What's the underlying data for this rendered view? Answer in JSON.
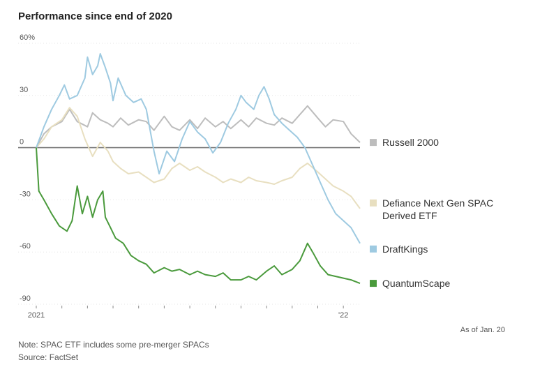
{
  "title": "Performance since end of 2020",
  "as_of": "As of Jan. 20",
  "note": "Note: SPAC ETF includes some pre-merger SPACs",
  "source": "Source: FactSet",
  "chart_data": {
    "type": "line",
    "ylim": [
      -90,
      60
    ],
    "yticks": [
      60,
      30,
      0,
      -30,
      -60,
      -90
    ],
    "ytick_labels": [
      "60%",
      "30",
      "0",
      "-30",
      "-60",
      "-90"
    ],
    "x_range_months": [
      0,
      12.65
    ],
    "xtick_labels": [
      {
        "month": 0,
        "label": "2021"
      },
      {
        "month": 12,
        "label": "'22"
      }
    ],
    "series": [
      {
        "name": "Russell 2000",
        "legend_label": [
          "Russell 2000"
        ],
        "color": "#bdbdbd",
        "points": [
          [
            0,
            0
          ],
          [
            0.3,
            8
          ],
          [
            0.6,
            12
          ],
          [
            1.0,
            15
          ],
          [
            1.3,
            22
          ],
          [
            1.6,
            15
          ],
          [
            2.0,
            12
          ],
          [
            2.2,
            20
          ],
          [
            2.5,
            16
          ],
          [
            2.8,
            14
          ],
          [
            3.0,
            12
          ],
          [
            3.3,
            17
          ],
          [
            3.6,
            13
          ],
          [
            4.0,
            16
          ],
          [
            4.3,
            15
          ],
          [
            4.6,
            10
          ],
          [
            5.0,
            18
          ],
          [
            5.3,
            12
          ],
          [
            5.6,
            10
          ],
          [
            6.0,
            16
          ],
          [
            6.3,
            11
          ],
          [
            6.6,
            17
          ],
          [
            7.0,
            12
          ],
          [
            7.3,
            15
          ],
          [
            7.6,
            11
          ],
          [
            8.0,
            16
          ],
          [
            8.3,
            12
          ],
          [
            8.6,
            17
          ],
          [
            9.0,
            14
          ],
          [
            9.3,
            13
          ],
          [
            9.6,
            17
          ],
          [
            10.0,
            14
          ],
          [
            10.3,
            19
          ],
          [
            10.6,
            24
          ],
          [
            11.0,
            17
          ],
          [
            11.3,
            12
          ],
          [
            11.6,
            16
          ],
          [
            12.0,
            15
          ],
          [
            12.3,
            8
          ],
          [
            12.65,
            3
          ]
        ]
      },
      {
        "name": "Defiance Next Gen SPAC Derived ETF",
        "legend_label": [
          "Defiance Next Gen SPAC",
          "Derived ETF"
        ],
        "color": "#e8dfc0",
        "points": [
          [
            0,
            0
          ],
          [
            0.3,
            5
          ],
          [
            0.6,
            12
          ],
          [
            1.0,
            16
          ],
          [
            1.3,
            23
          ],
          [
            1.6,
            18
          ],
          [
            1.9,
            5
          ],
          [
            2.2,
            -5
          ],
          [
            2.5,
            3
          ],
          [
            2.8,
            -2
          ],
          [
            3.0,
            -8
          ],
          [
            3.3,
            -12
          ],
          [
            3.6,
            -15
          ],
          [
            4.0,
            -14
          ],
          [
            4.3,
            -17
          ],
          [
            4.6,
            -20
          ],
          [
            5.0,
            -18
          ],
          [
            5.3,
            -12
          ],
          [
            5.6,
            -9
          ],
          [
            6.0,
            -13
          ],
          [
            6.3,
            -11
          ],
          [
            6.6,
            -14
          ],
          [
            7.0,
            -17
          ],
          [
            7.3,
            -20
          ],
          [
            7.6,
            -18
          ],
          [
            8.0,
            -20
          ],
          [
            8.3,
            -17
          ],
          [
            8.6,
            -19
          ],
          [
            9.0,
            -20
          ],
          [
            9.3,
            -21
          ],
          [
            9.6,
            -19
          ],
          [
            10.0,
            -17
          ],
          [
            10.3,
            -12
          ],
          [
            10.6,
            -9
          ],
          [
            11.0,
            -14
          ],
          [
            11.3,
            -18
          ],
          [
            11.6,
            -22
          ],
          [
            12.0,
            -25
          ],
          [
            12.3,
            -28
          ],
          [
            12.65,
            -35
          ]
        ]
      },
      {
        "name": "DraftKings",
        "legend_label": [
          "DraftKings"
        ],
        "color": "#9ecae1",
        "points": [
          [
            0,
            0
          ],
          [
            0.3,
            12
          ],
          [
            0.6,
            22
          ],
          [
            0.9,
            30
          ],
          [
            1.1,
            36
          ],
          [
            1.3,
            28
          ],
          [
            1.6,
            30
          ],
          [
            1.9,
            40
          ],
          [
            2.0,
            52
          ],
          [
            2.2,
            42
          ],
          [
            2.4,
            47
          ],
          [
            2.5,
            54
          ],
          [
            2.7,
            46
          ],
          [
            2.9,
            37
          ],
          [
            3.0,
            27
          ],
          [
            3.2,
            40
          ],
          [
            3.5,
            30
          ],
          [
            3.8,
            26
          ],
          [
            4.1,
            28
          ],
          [
            4.3,
            22
          ],
          [
            4.6,
            -2
          ],
          [
            4.8,
            -15
          ],
          [
            5.1,
            -2
          ],
          [
            5.4,
            -8
          ],
          [
            5.7,
            5
          ],
          [
            6.0,
            15
          ],
          [
            6.3,
            9
          ],
          [
            6.6,
            5
          ],
          [
            6.9,
            -3
          ],
          [
            7.2,
            3
          ],
          [
            7.5,
            14
          ],
          [
            7.8,
            22
          ],
          [
            8.0,
            30
          ],
          [
            8.2,
            26
          ],
          [
            8.5,
            22
          ],
          [
            8.7,
            30
          ],
          [
            8.9,
            35
          ],
          [
            9.1,
            28
          ],
          [
            9.3,
            19
          ],
          [
            9.6,
            14
          ],
          [
            9.9,
            10
          ],
          [
            10.2,
            6
          ],
          [
            10.5,
            0
          ],
          [
            10.8,
            -10
          ],
          [
            11.1,
            -20
          ],
          [
            11.4,
            -30
          ],
          [
            11.7,
            -38
          ],
          [
            12.0,
            -42
          ],
          [
            12.3,
            -46
          ],
          [
            12.65,
            -55
          ]
        ]
      },
      {
        "name": "QuantumScape",
        "legend_label": [
          "QuantumScape"
        ],
        "color": "#4a9a3c",
        "points": [
          [
            0,
            0
          ],
          [
            0.1,
            -25
          ],
          [
            0.3,
            -30
          ],
          [
            0.6,
            -38
          ],
          [
            0.9,
            -45
          ],
          [
            1.2,
            -48
          ],
          [
            1.4,
            -42
          ],
          [
            1.5,
            -32
          ],
          [
            1.6,
            -22
          ],
          [
            1.8,
            -38
          ],
          [
            2.0,
            -28
          ],
          [
            2.2,
            -40
          ],
          [
            2.4,
            -30
          ],
          [
            2.6,
            -25
          ],
          [
            2.7,
            -40
          ],
          [
            2.9,
            -46
          ],
          [
            3.1,
            -52
          ],
          [
            3.4,
            -55
          ],
          [
            3.7,
            -62
          ],
          [
            4.0,
            -65
          ],
          [
            4.3,
            -67
          ],
          [
            4.6,
            -72
          ],
          [
            5.0,
            -69
          ],
          [
            5.3,
            -71
          ],
          [
            5.6,
            -70
          ],
          [
            6.0,
            -73
          ],
          [
            6.3,
            -71
          ],
          [
            6.6,
            -73
          ],
          [
            7.0,
            -74
          ],
          [
            7.3,
            -72
          ],
          [
            7.6,
            -76
          ],
          [
            8.0,
            -76
          ],
          [
            8.3,
            -74
          ],
          [
            8.6,
            -76
          ],
          [
            9.0,
            -71
          ],
          [
            9.3,
            -68
          ],
          [
            9.6,
            -73
          ],
          [
            10.0,
            -70
          ],
          [
            10.3,
            -65
          ],
          [
            10.6,
            -55
          ],
          [
            10.8,
            -60
          ],
          [
            11.1,
            -68
          ],
          [
            11.4,
            -73
          ],
          [
            11.7,
            -74
          ],
          [
            12.0,
            -75
          ],
          [
            12.3,
            -76
          ],
          [
            12.65,
            -78
          ]
        ]
      }
    ]
  }
}
